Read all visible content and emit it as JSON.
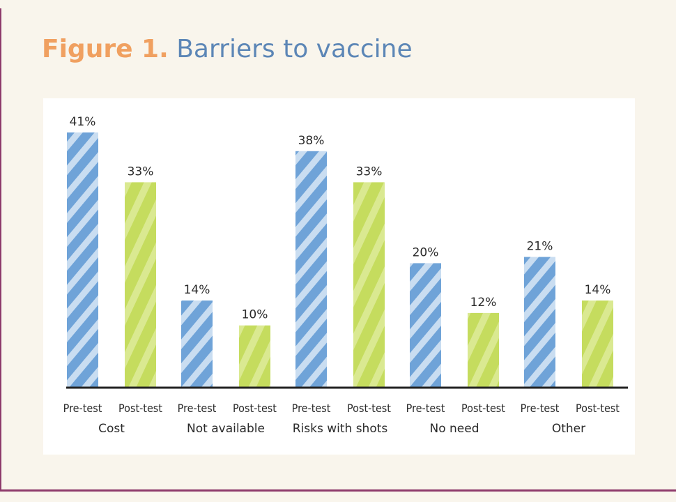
{
  "title": {
    "figure_label": "Figure 1.",
    "text": "Barriers to vaccine"
  },
  "colors": {
    "pre_test": "#5b93cf",
    "post_test": "#c5dc5e",
    "frame": "#8e3a6b",
    "figure_label": "#f0a060",
    "title_text": "#5c86b6"
  },
  "chart_data": {
    "type": "bar",
    "categories": [
      "Cost",
      "Not available",
      "Risks with shots",
      "No need",
      "Other"
    ],
    "series": [
      {
        "name": "Pre-test",
        "values": [
          41,
          14,
          38,
          20,
          21
        ]
      },
      {
        "name": "Post-test",
        "values": [
          33,
          10,
          33,
          12,
          14
        ]
      }
    ],
    "value_labels": [
      [
        "41%",
        "14%",
        "38%",
        "20%",
        "21%"
      ],
      [
        "33%",
        "10%",
        "33%",
        "12%",
        "14%"
      ]
    ],
    "tick_labels": [
      "Pre-test",
      "Post-test"
    ],
    "ylim": [
      0,
      41
    ],
    "grid": false,
    "legend": "none",
    "xlabel": "",
    "ylabel": ""
  }
}
